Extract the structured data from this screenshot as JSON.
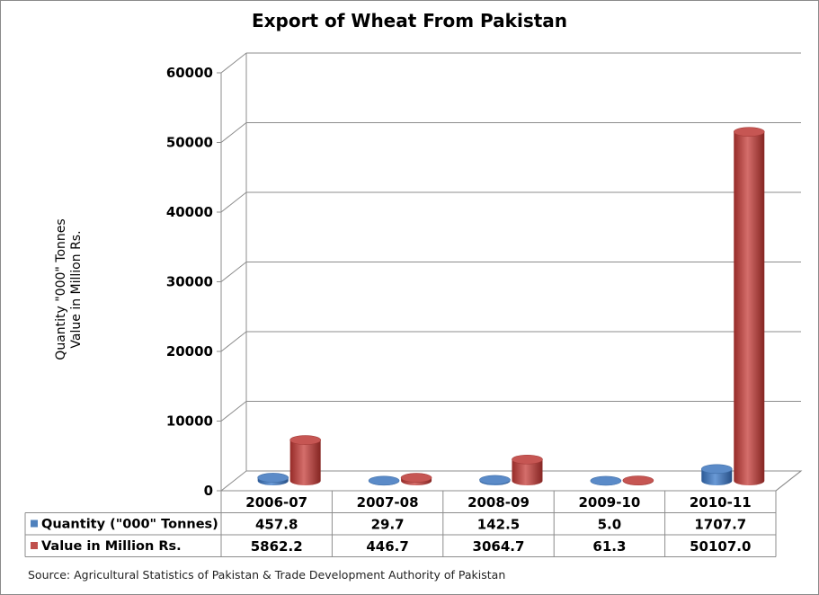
{
  "chart_data": {
    "type": "bar",
    "title": "Export of Wheat From Pakistan",
    "ylabel": [
      "Quantity \"000\" Tonnes",
      "Value in Million Rs."
    ],
    "xlabel": "",
    "categories": [
      "2006-07",
      "2007-08",
      "2008-09",
      "2009-10",
      "2010-11"
    ],
    "ylim": [
      0,
      60000
    ],
    "yticks": [
      "0",
      "10000",
      "20000",
      "30000",
      "40000",
      "50000",
      "60000"
    ],
    "grid": true,
    "legend": "data-table",
    "series": [
      {
        "name": "Quantity (\"000\" Tonnes)",
        "values": [
          457.8,
          29.7,
          142.5,
          5.0,
          1707.7
        ],
        "labels": [
          "457.8",
          "29.7",
          "142.5",
          "5.0",
          "1707.7"
        ],
        "color": "#4f81bd"
      },
      {
        "name": "Value in Million Rs.",
        "values": [
          5862.2,
          446.7,
          3064.7,
          61.3,
          50107.0
        ],
        "labels": [
          "5862.2",
          "446.7",
          "3064.7",
          "61.3",
          "50107.0"
        ],
        "color": "#c0504d"
      }
    ],
    "source": "Source: Agricultural Statistics of Pakistan & Trade Development Authority of Pakistan"
  }
}
